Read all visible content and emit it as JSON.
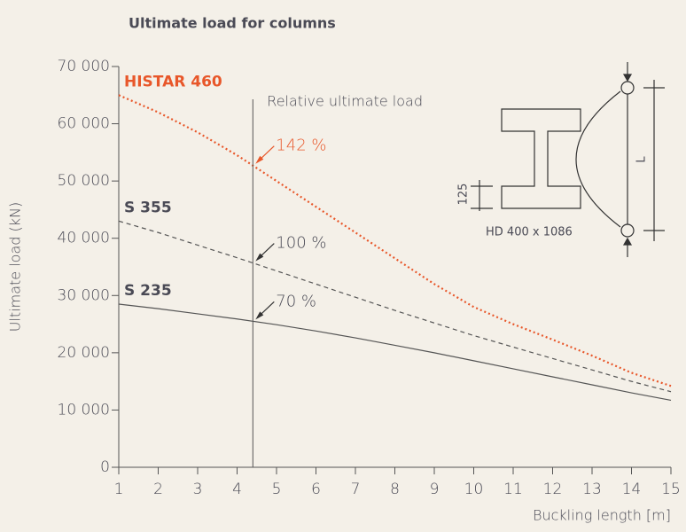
{
  "chart_data": {
    "type": "line",
    "title": "Ultimate load for columns",
    "x_label": "Buckling length [m]",
    "y_label": "Ultimate load (kN)",
    "x": [
      1,
      2,
      3,
      4,
      5,
      6,
      7,
      8,
      9,
      10,
      11,
      12,
      13,
      14,
      15
    ],
    "series": [
      {
        "name": "HISTAR 460",
        "color": "#e8572a",
        "style": "dotted",
        "values": [
          65000,
          62000,
          58500,
          54500,
          50000,
          45500,
          41000,
          36500,
          32000,
          28000,
          25000,
          22300,
          19500,
          16500,
          14200
        ]
      },
      {
        "name": "S 355",
        "color": "#555555",
        "style": "dashed",
        "values": [
          43000,
          41000,
          38800,
          36600,
          34300,
          32000,
          29700,
          27400,
          25200,
          23000,
          21000,
          19000,
          17000,
          15000,
          13200
        ]
      },
      {
        "name": "S 235",
        "color": "#555555",
        "style": "solid",
        "values": [
          28500,
          27700,
          26800,
          25900,
          24900,
          23800,
          22600,
          21300,
          20000,
          18600,
          17200,
          15800,
          14400,
          13000,
          11700
        ]
      }
    ],
    "reference_line": {
      "x": 4.4,
      "label": "Relative ultimate load"
    },
    "annotations": [
      {
        "text": "142 %",
        "series": 0
      },
      {
        "text": "100 %",
        "series": 1
      },
      {
        "text": "70 %",
        "series": 2
      }
    ],
    "xlim": [
      1,
      15
    ],
    "xticks": [
      1,
      2,
      3,
      4,
      5,
      6,
      7,
      8,
      9,
      10,
      11,
      12,
      13,
      14,
      15
    ],
    "ylim": [
      0,
      70000
    ],
    "yticks": [
      0,
      {
        "value": 10000,
        "label": "10 000"
      },
      {
        "value": 20000,
        "label": "20 000"
      },
      {
        "value": 30000,
        "label": "30 000"
      },
      {
        "value": 40000,
        "label": "40 000"
      },
      {
        "value": 50000,
        "label": "50 000"
      },
      {
        "value": 60000,
        "label": "60 000"
      },
      {
        "value": 70000,
        "label": "70 000"
      }
    ]
  },
  "diagram": {
    "flange_dim": "125",
    "section": "HD 400 x 1086",
    "length": "L"
  }
}
